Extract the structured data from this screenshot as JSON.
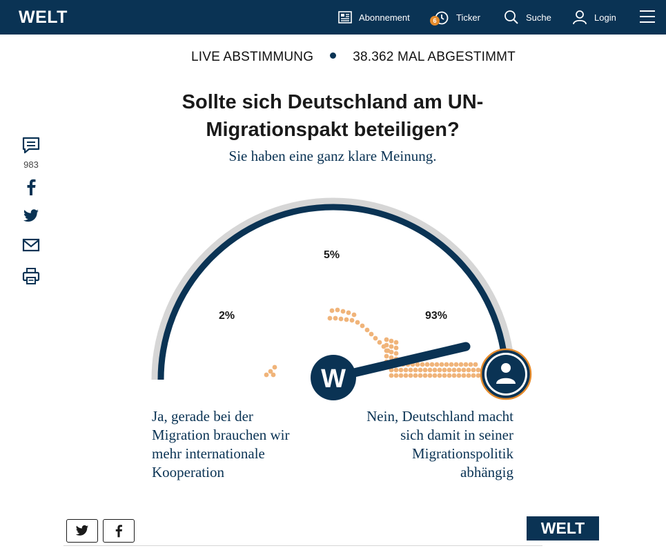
{
  "header": {
    "logo": "WELT",
    "nav": {
      "abonnement": "Abonnement",
      "ticker": "Ticker",
      "ticker_badge": "6",
      "suche": "Suche",
      "login": "Login"
    }
  },
  "rail": {
    "comments_count": "983"
  },
  "vote": {
    "live_label": "LIVE ABSTIMMUNG",
    "count_label": "38.362 MAL ABGESTIMMT"
  },
  "question": {
    "title": "Sollte sich Deutschland am UN-Migrationspakt beteiligen?",
    "subtitle": "Sie haben eine ganz klare Meinung."
  },
  "results": {
    "left_pct": "2%",
    "middle_pct": "5%",
    "right_pct": "93%",
    "left_answer": "Ja, gerade bei der Migration brauchen wir mehr internationale Kooperation",
    "right_answer": "Nein, Deutschland macht sich damit in seiner Migrationspolitik abhängig",
    "needle_share": 0.93,
    "dial_logo": "W"
  },
  "colors": {
    "navy": "#0a3354",
    "accent": "#e58b2c",
    "dots": "#f0b47a",
    "track": "#d6d6d6"
  },
  "icons": [
    "newspaper-icon",
    "stopwatch-icon",
    "search-icon",
    "user-icon",
    "menu-icon",
    "comment-icon",
    "facebook-icon",
    "twitter-icon",
    "mail-icon",
    "print-icon",
    "person-icon"
  ],
  "footer": {
    "logo": "WELT"
  }
}
